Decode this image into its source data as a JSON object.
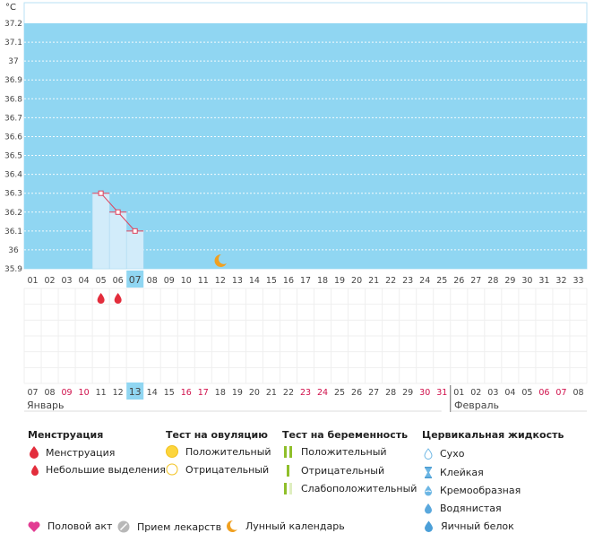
{
  "chart_data": {
    "type": "line",
    "unit_label": "°C",
    "y_ticks": [
      "37.2",
      "37.1",
      "37",
      "36.9",
      "36.8",
      "36.7",
      "36.6",
      "36.5",
      "36.4",
      "36.3",
      "36.2",
      "36.1",
      "36",
      "35.9"
    ],
    "ylim": [
      35.9,
      37.2
    ],
    "grid": true,
    "cycle_days": [
      "01",
      "02",
      "03",
      "04",
      "05",
      "06",
      "07",
      "08",
      "09",
      "10",
      "11",
      "12",
      "13",
      "14",
      "15",
      "16",
      "17",
      "18",
      "19",
      "20",
      "21",
      "22",
      "23",
      "24",
      "25",
      "26",
      "27",
      "28",
      "29",
      "30",
      "31",
      "32",
      "33"
    ],
    "highlighted_cycle_day": "07",
    "series": [
      {
        "x": [
          "05",
          "06",
          "07"
        ],
        "values": [
          36.3,
          36.2,
          36.1
        ]
      }
    ],
    "menstruation_marks_cycle_days": [
      "05",
      "06"
    ],
    "moon_mark_cycle_day": "12",
    "calendar_dates": [
      "07",
      "08",
      "09",
      "10",
      "11",
      "12",
      "13",
      "14",
      "15",
      "16",
      "17",
      "18",
      "19",
      "20",
      "21",
      "22",
      "23",
      "24",
      "25",
      "26",
      "27",
      "28",
      "29",
      "30",
      "31",
      "01",
      "02",
      "03",
      "04",
      "05",
      "06",
      "07",
      "08"
    ],
    "calendar_weekend_indices": [
      2,
      3,
      9,
      10,
      16,
      17,
      23,
      24,
      30,
      31
    ],
    "highlighted_date_index": 6,
    "month_start_index": 25,
    "colors": {
      "plot_bg": "#90d6f2",
      "bar_fill": "#d2ecfa",
      "line": "#e0405a",
      "weekend_text": "#d0104b",
      "highlight": "#90d6f2",
      "moon": "#f0a020"
    }
  },
  "months": {
    "first": "Январь",
    "second": "Февраль"
  },
  "legend": {
    "menstruation": {
      "title": "Менструация",
      "items": [
        "Менструация",
        "Небольшие выделения"
      ]
    },
    "ovulation_test": {
      "title": "Тест на овуляцию",
      "items": [
        "Положительный",
        "Отрицательный"
      ]
    },
    "pregnancy_test": {
      "title": "Тест на беременность",
      "items": [
        "Положительный",
        "Отрицательный",
        "Слабоположительный"
      ]
    },
    "cervical_fluid": {
      "title": "Цервикальная жидкость",
      "items": [
        "Сухо",
        "Клейкая",
        "Кремообразная",
        "Водянистая",
        "Яичный белок"
      ]
    },
    "bottom": {
      "items": [
        "Половой акт",
        "Прием лекарств",
        "Лунный календарь"
      ]
    }
  },
  "icons": {
    "menstruation": "drop-icon",
    "light_spotting": "small-drop-icon",
    "ovulation_positive": "yellow-circle-icon",
    "ovulation_negative": "empty-circle-icon",
    "pregnancy_positive": "double-line-icon",
    "pregnancy_negative": "single-line-icon",
    "pregnancy_weak": "faded-double-line-icon",
    "dry": "outline-drop-icon",
    "sticky": "hourglass-icon",
    "creamy": "cream-drop-icon",
    "watery": "water-drop-icon",
    "egg_white": "egg-white-drop-icon",
    "intercourse": "heart-icon",
    "medication": "pill-icon",
    "moon": "moon-icon"
  }
}
